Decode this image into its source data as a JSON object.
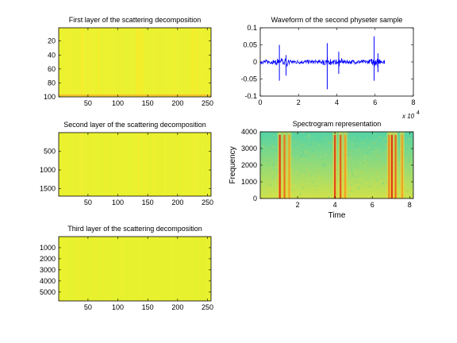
{
  "chart_data": [
    {
      "type": "heatmap",
      "title": "First layer of the scattering decomposition",
      "xlabel": "",
      "ylabel": "",
      "xlim": [
        1,
        256
      ],
      "ylim": [
        1,
        100
      ],
      "y_reversed": true,
      "xticks": [
        50,
        100,
        150,
        200,
        250
      ],
      "yticks": [
        20,
        40,
        60,
        80,
        100
      ],
      "base_color": "#ecf230",
      "vertical_bands": [
        {
          "x": 40,
          "color": "#f7ec2c"
        },
        {
          "x": 68,
          "color": "#f4ee2d"
        },
        {
          "x": 133,
          "color": "#f9e92a"
        },
        {
          "x": 140,
          "color": "#f5ec2c"
        },
        {
          "x": 225,
          "color": "#f8ea2b"
        },
        {
          "x": 232,
          "color": "#f5ec2c"
        }
      ],
      "bottom_row_color": "#f5b82a"
    },
    {
      "type": "heatmap",
      "title": "Second layer of the scattering decomposition",
      "xlabel": "",
      "ylabel": "",
      "xlim": [
        1,
        256
      ],
      "ylim": [
        1,
        1700
      ],
      "y_reversed": true,
      "xticks": [
        50,
        100,
        150,
        200,
        250
      ],
      "yticks": [
        500,
        1000,
        1500
      ],
      "base_color": "#eaf22f",
      "vertical_bands": [
        {
          "x": 40,
          "color": "#eef032"
        },
        {
          "x": 135,
          "color": "#f2ee31"
        },
        {
          "x": 228,
          "color": "#f0ef32"
        }
      ]
    },
    {
      "type": "heatmap",
      "title": "Third layer of the scattering decomposition",
      "xlabel": "",
      "ylabel": "",
      "xlim": [
        1,
        256
      ],
      "ylim": [
        1,
        5800
      ],
      "y_reversed": true,
      "xticks": [
        50,
        100,
        150,
        200,
        250
      ],
      "yticks": [
        1000,
        2000,
        3000,
        4000,
        5000
      ],
      "base_color": "#e8f22e",
      "vertical_bands": []
    },
    {
      "type": "line",
      "title": "Waveform of the second physeter sample",
      "xlabel": "",
      "ylabel": "",
      "xlim": [
        0,
        8
      ],
      "ylim": [
        -0.1,
        0.1
      ],
      "xticks": [
        0,
        2,
        4,
        6,
        8
      ],
      "yticks": [
        -0.1,
        -0.05,
        0,
        0.05,
        0.1
      ],
      "x_multiplier": "x 10",
      "x_multiplier_exp": "4",
      "series_color": "#0000ff",
      "signal_end": 6.5,
      "clicks": [
        {
          "x": 1.0,
          "up": 0.05,
          "down": -0.055
        },
        {
          "x": 1.35,
          "up": 0.02,
          "down": -0.04
        },
        {
          "x": 3.5,
          "up": 0.055,
          "down": -0.08
        },
        {
          "x": 4.1,
          "up": 0.03,
          "down": -0.035
        },
        {
          "x": 5.95,
          "up": 0.075,
          "down": -0.055
        },
        {
          "x": 6.15,
          "up": 0.025,
          "down": -0.03
        }
      ],
      "noise_level": 0.006
    },
    {
      "type": "heatmap",
      "title": "Spectrogram representation",
      "xlabel": "Time",
      "ylabel": "Frequency",
      "xlim": [
        0,
        8.2
      ],
      "ylim": [
        0,
        4000
      ],
      "xticks": [
        2,
        4,
        6,
        8
      ],
      "yticks": [
        0,
        1000,
        2000,
        3000,
        4000
      ],
      "background_high": "#55d3a5",
      "background_low": "#d0e24a",
      "click_columns": [
        {
          "x": 1.05,
          "color": "#e02a12"
        },
        {
          "x": 1.3,
          "color": "#e86a18"
        },
        {
          "x": 1.55,
          "color": "#f0a020"
        },
        {
          "x": 4.0,
          "color": "#e63515"
        },
        {
          "x": 4.3,
          "color": "#e25018"
        },
        {
          "x": 4.55,
          "color": "#f29a22"
        },
        {
          "x": 6.9,
          "color": "#ec7a1c"
        },
        {
          "x": 7.05,
          "color": "#e02a12"
        },
        {
          "x": 7.25,
          "color": "#ea601a"
        },
        {
          "x": 7.6,
          "color": "#f0a020"
        }
      ]
    }
  ]
}
